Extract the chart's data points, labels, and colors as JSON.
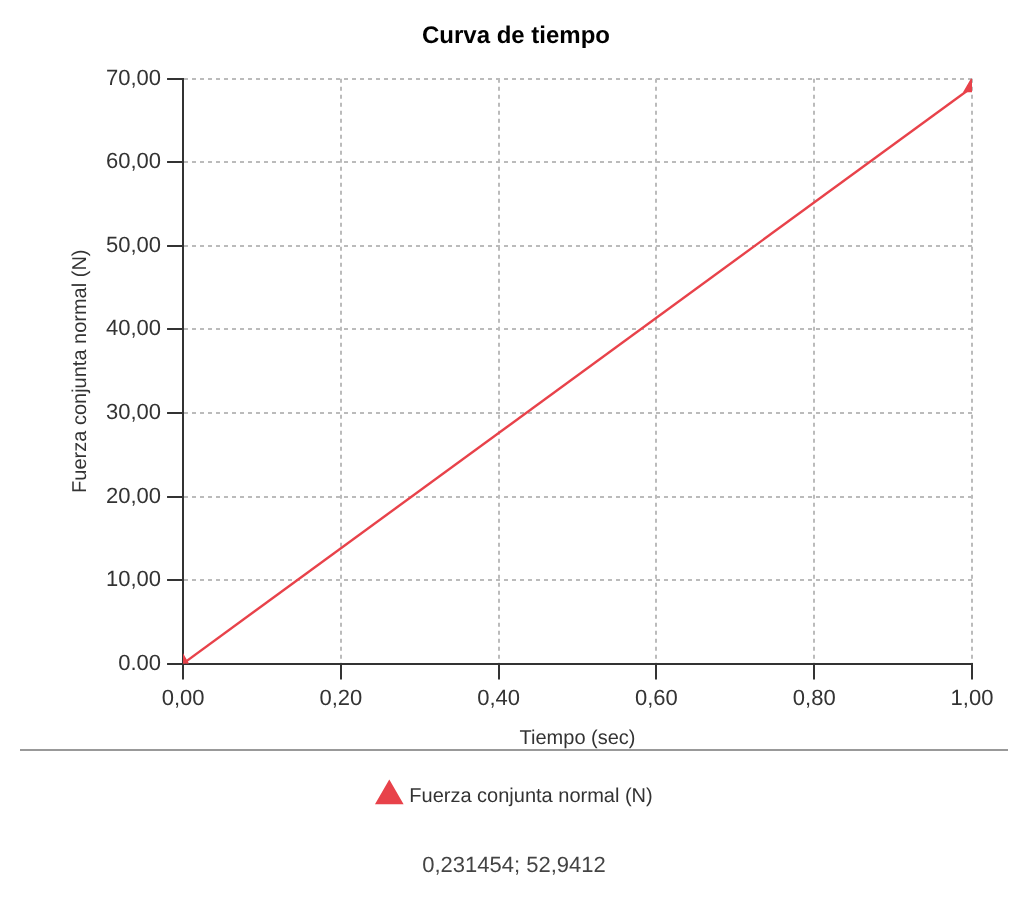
{
  "chart_data": {
    "type": "line",
    "title": "Curva de tiempo",
    "xlabel": "Tiempo (sec)",
    "ylabel": "Fuerza conjunta normal (N)",
    "x": [
      0,
      1
    ],
    "series": [
      {
        "name": "Fuerza conjunta normal (N)",
        "color": "#e8424a",
        "values": [
          0,
          69
        ]
      }
    ],
    "xlim": [
      0,
      1
    ],
    "xticks": [
      {
        "value": 0,
        "label": "0,00"
      },
      {
        "value": 0.2,
        "label": "0,20"
      },
      {
        "value": 0.4,
        "label": "0,40"
      },
      {
        "value": 0.6,
        "label": "0,60"
      },
      {
        "value": 0.8,
        "label": "0,80"
      },
      {
        "value": 1,
        "label": "1,00"
      }
    ],
    "ylim": [
      0,
      70
    ],
    "yticks": [
      {
        "value": 0,
        "label": "0.00"
      },
      {
        "value": 10,
        "label": "10,00"
      },
      {
        "value": 20,
        "label": "20,00"
      },
      {
        "value": 30,
        "label": "30,00"
      },
      {
        "value": 40,
        "label": "40,00"
      },
      {
        "value": 50,
        "label": "50,00"
      },
      {
        "value": 60,
        "label": "60,00"
      },
      {
        "value": 70,
        "label": "70,00"
      }
    ],
    "grid": true,
    "legend": "bottom",
    "marker": "triangle",
    "line_style": "solid",
    "annotations": [
      "0,231454; 52,9412"
    ]
  }
}
